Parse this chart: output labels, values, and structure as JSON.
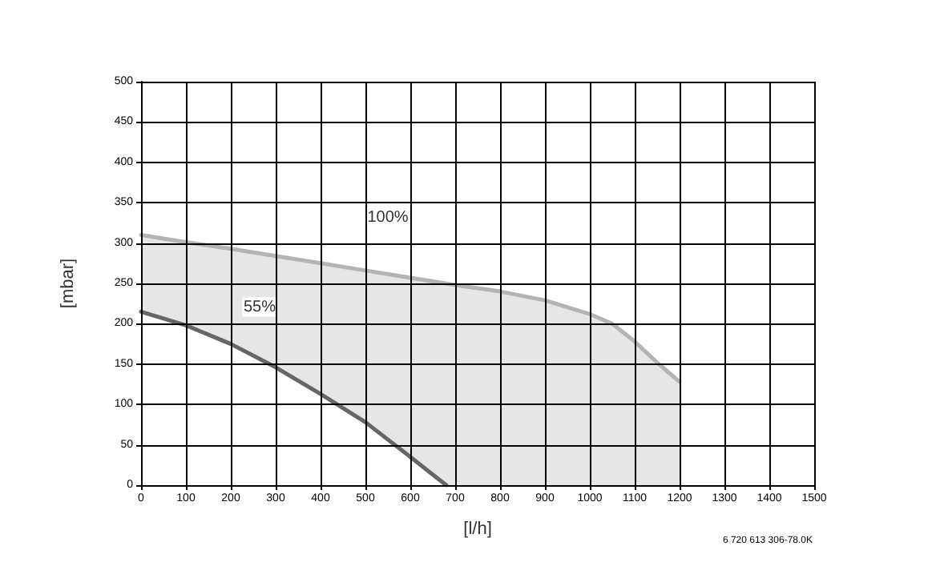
{
  "chart_data": {
    "type": "area",
    "xlabel": "[l/h]",
    "ylabel": "[mbar]",
    "annotations": [
      "6 720 613 306-78.0K"
    ],
    "series": [
      {
        "name": "100%",
        "color": "#b4b4b4",
        "x": [
          0,
          100,
          200,
          300,
          400,
          500,
          600,
          700,
          800,
          900,
          1000,
          1050,
          1100,
          1150,
          1200
        ],
        "values": [
          310,
          301,
          293,
          284,
          275,
          266,
          257,
          248,
          240,
          229,
          212,
          200,
          178,
          152,
          128
        ]
      },
      {
        "name": "55%",
        "color": "#666666",
        "x": [
          0,
          100,
          200,
          300,
          400,
          500,
          600,
          680
        ],
        "values": [
          215,
          198,
          175,
          146,
          113,
          78,
          35,
          0
        ]
      }
    ],
    "xlim": [
      0,
      1500
    ],
    "xticks": [
      0,
      100,
      200,
      300,
      400,
      500,
      600,
      700,
      800,
      900,
      1000,
      1100,
      1200,
      1300,
      1400,
      1500
    ],
    "ylim": [
      0,
      500
    ],
    "yticks": [
      0,
      50,
      100,
      150,
      200,
      250,
      300,
      350,
      400,
      450,
      500
    ],
    "grid": true,
    "legend": false
  }
}
